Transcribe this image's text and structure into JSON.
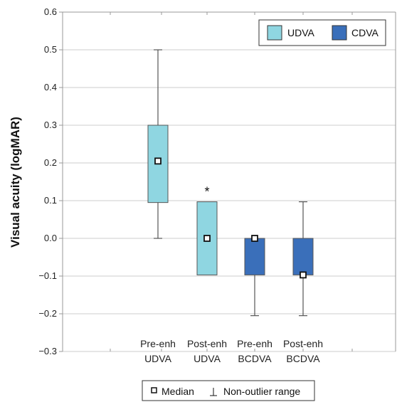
{
  "chart_data": {
    "type": "box",
    "ylabel": "Visual acuity (logMAR)",
    "ylim": [
      -0.3,
      0.6
    ],
    "yticks": [
      -0.3,
      -0.2,
      -0.1,
      0.0,
      0.1,
      0.2,
      0.3,
      0.4,
      0.5,
      0.6
    ],
    "ytick_labels": [
      "−0.3",
      "−0.2",
      "−0.1",
      "0.0",
      "0.1",
      "0.2",
      "0.3",
      "0.4",
      "0.5",
      "0.6"
    ],
    "grid": true,
    "categories": [
      {
        "line1": "Pre-enh",
        "line2": "UDVA"
      },
      {
        "line1": "Post-enh",
        "line2": "UDVA"
      },
      {
        "line1": "Pre-enh",
        "line2": "BCDVA"
      },
      {
        "line1": "Post-enh",
        "line2": "BCDVA"
      }
    ],
    "boxes": [
      {
        "group": "UDVA",
        "q1": 0.095,
        "q3": 0.3,
        "median": 0.205,
        "whisker_low": 0.0,
        "whisker_high": 0.5,
        "significance": ""
      },
      {
        "group": "UDVA",
        "q1": -0.097,
        "q3": 0.097,
        "median": 0.0,
        "whisker_low": null,
        "whisker_high": null,
        "significance": "*"
      },
      {
        "group": "CDVA",
        "q1": -0.097,
        "q3": 0.0,
        "median": 0.0,
        "whisker_low": -0.205,
        "whisker_high": null,
        "significance": ""
      },
      {
        "group": "CDVA",
        "q1": -0.097,
        "q3": 0.0,
        "median": -0.097,
        "whisker_low": -0.205,
        "whisker_high": 0.097,
        "significance": ""
      }
    ],
    "legend": {
      "position": "top-right",
      "entries": [
        {
          "label": "UDVA",
          "color": "#8fd6e1"
        },
        {
          "label": "CDVA",
          "color": "#3a6fba"
        }
      ]
    },
    "notes": {
      "median_label": "Median",
      "range_label": "Non-outlier range"
    }
  },
  "colors": {
    "udva": "#8fd6e1",
    "cdva": "#3a6fba",
    "box_stroke": "#555555",
    "grid": "#cccccc",
    "axis": "#999999"
  }
}
